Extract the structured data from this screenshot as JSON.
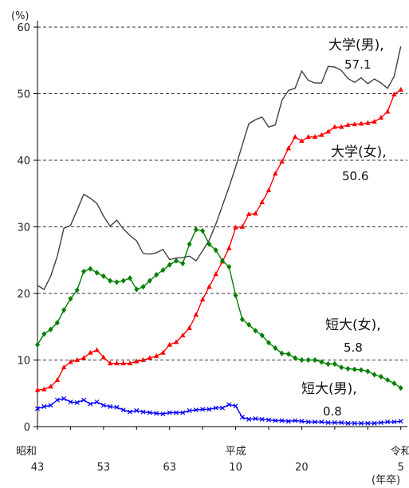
{
  "chart_data": {
    "type": "line",
    "y_unit": "(%)",
    "x_unit": "(年卒)",
    "ylim": [
      0,
      60
    ],
    "y_ticks": [
      0,
      10,
      20,
      30,
      40,
      50,
      60
    ],
    "xlim": [
      1968,
      2024
    ],
    "grid": "horizontal dashed",
    "x_ticks": [
      {
        "x": 1968,
        "era": "昭和",
        "label": "43"
      },
      {
        "x": 1978,
        "era": "",
        "label": "53"
      },
      {
        "x": 1988,
        "era": "",
        "label": "63"
      },
      {
        "x": 1998,
        "era": "平成",
        "label": "10"
      },
      {
        "x": 2008,
        "era": "",
        "label": "20"
      },
      {
        "x": 2023,
        "era": "令和",
        "label": "5"
      }
    ],
    "series": [
      {
        "name": "大学(男)",
        "color": "#404040",
        "marker": "none",
        "annotation": {
          "label": "大学(男),",
          "value": "57.1"
        },
        "x": [
          1968,
          1969,
          1970,
          1971,
          1972,
          1973,
          1974,
          1975,
          1976,
          1977,
          1978,
          1979,
          1980,
          1981,
          1982,
          1983,
          1984,
          1985,
          1986,
          1987,
          1988,
          1989,
          1990,
          1991,
          1992,
          1993,
          1994,
          1995,
          1996,
          1997,
          1998,
          1999,
          2000,
          2001,
          2002,
          2003,
          2004,
          2005,
          2006,
          2007,
          2008,
          2009,
          2010,
          2011,
          2012,
          2013,
          2014,
          2015,
          2016,
          2017,
          2018,
          2019,
          2020,
          2021,
          2022,
          2023
        ],
        "values": [
          21.2,
          20.6,
          22.6,
          25.6,
          29.8,
          30.2,
          32.5,
          34.9,
          34.3,
          33.5,
          31.6,
          30.1,
          31.0,
          29.7,
          28.7,
          27.9,
          26.0,
          25.9,
          26.1,
          26.6,
          25.1,
          25.3,
          25.4,
          25.6,
          24.9,
          26.4,
          28.0,
          30.4,
          33.2,
          36.0,
          39.0,
          42.3,
          45.5,
          46.1,
          46.5,
          45.0,
          45.3,
          49.0,
          50.5,
          50.8,
          53.4,
          52.0,
          51.6,
          51.6,
          54.1,
          54.0,
          53.5,
          52.3,
          51.7,
          52.4,
          51.5,
          52.2,
          51.6,
          50.8,
          52.6,
          57.1
        ]
      },
      {
        "name": "大学(女)",
        "color": "#ff0000",
        "marker": "triangle",
        "annotation": {
          "label": "大学(女),",
          "value": "50.6"
        },
        "x": [
          1968,
          1969,
          1970,
          1971,
          1972,
          1973,
          1974,
          1975,
          1976,
          1977,
          1978,
          1979,
          1980,
          1981,
          1982,
          1983,
          1984,
          1985,
          1986,
          1987,
          1988,
          1989,
          1990,
          1991,
          1992,
          1993,
          1994,
          1995,
          1996,
          1997,
          1998,
          1999,
          2000,
          2001,
          2002,
          2003,
          2004,
          2005,
          2006,
          2007,
          2008,
          2009,
          2010,
          2011,
          2012,
          2013,
          2014,
          2015,
          2016,
          2017,
          2018,
          2019,
          2020,
          2021,
          2022,
          2023
        ],
        "values": [
          5.5,
          5.6,
          6.0,
          7.0,
          8.9,
          9.7,
          10.0,
          10.3,
          11.1,
          11.5,
          10.4,
          9.5,
          9.5,
          9.5,
          9.5,
          9.8,
          10.0,
          10.3,
          10.6,
          11.1,
          12.3,
          12.7,
          13.7,
          14.8,
          16.8,
          19.1,
          21.0,
          22.9,
          24.8,
          26.8,
          29.9,
          30.0,
          31.9,
          32.0,
          33.7,
          35.5,
          38.0,
          39.8,
          41.8,
          43.5,
          42.9,
          43.5,
          43.5,
          43.8,
          44.3,
          45.0,
          45.0,
          45.3,
          45.4,
          45.5,
          45.6,
          45.8,
          46.4,
          47.3,
          49.9,
          50.6
        ]
      },
      {
        "name": "短大(女)",
        "color": "#008000",
        "marker": "diamond",
        "annotation": {
          "label": "短大(女),",
          "value": "5.8"
        },
        "x": [
          1968,
          1969,
          1970,
          1971,
          1972,
          1973,
          1974,
          1975,
          1976,
          1977,
          1978,
          1979,
          1980,
          1981,
          1982,
          1983,
          1984,
          1985,
          1986,
          1987,
          1988,
          1989,
          1990,
          1991,
          1992,
          1993,
          1994,
          1995,
          1996,
          1997,
          1998,
          1999,
          2000,
          2001,
          2002,
          2003,
          2004,
          2005,
          2006,
          2007,
          2008,
          2009,
          2010,
          2011,
          2012,
          2013,
          2014,
          2015,
          2016,
          2017,
          2018,
          2019,
          2020,
          2021,
          2022,
          2023
        ],
        "values": [
          12.3,
          13.9,
          14.6,
          15.6,
          17.5,
          19.2,
          20.5,
          23.3,
          23.7,
          23.1,
          22.6,
          21.9,
          21.7,
          21.9,
          22.3,
          20.6,
          21.0,
          21.9,
          22.8,
          23.5,
          24.3,
          24.9,
          24.5,
          27.4,
          29.6,
          29.4,
          27.4,
          26.5,
          24.9,
          24.0,
          19.7,
          16.1,
          15.3,
          14.4,
          13.7,
          12.6,
          11.8,
          11.0,
          10.9,
          10.3,
          10.0,
          10.0,
          10.0,
          9.7,
          9.4,
          9.4,
          8.9,
          8.7,
          8.6,
          8.5,
          8.3,
          7.8,
          7.5,
          7.0,
          6.5,
          5.8
        ]
      },
      {
        "name": "短大(男)",
        "color": "#0000ff",
        "marker": "x",
        "annotation": {
          "label": "短大(男),",
          "value": "0.8"
        },
        "x": [
          1968,
          1969,
          1970,
          1971,
          1972,
          1973,
          1974,
          1975,
          1976,
          1977,
          1978,
          1979,
          1980,
          1981,
          1982,
          1983,
          1984,
          1985,
          1986,
          1987,
          1988,
          1989,
          1990,
          1991,
          1992,
          1993,
          1994,
          1995,
          1996,
          1997,
          1998,
          1999,
          2000,
          2001,
          2002,
          2003,
          2004,
          2005,
          2006,
          2007,
          2008,
          2009,
          2010,
          2011,
          2012,
          2013,
          2014,
          2015,
          2016,
          2017,
          2018,
          2019,
          2020,
          2021,
          2022,
          2023
        ],
        "values": [
          2.7,
          3.0,
          3.2,
          4.0,
          4.2,
          3.7,
          3.6,
          4.0,
          3.4,
          3.7,
          3.2,
          3.0,
          2.9,
          2.5,
          2.2,
          2.4,
          2.2,
          2.1,
          2.0,
          1.9,
          2.1,
          2.1,
          2.1,
          2.4,
          2.5,
          2.6,
          2.6,
          2.8,
          2.8,
          3.3,
          3.1,
          1.4,
          1.1,
          1.2,
          1.1,
          1.0,
          0.9,
          0.9,
          0.8,
          0.9,
          0.8,
          0.7,
          0.7,
          0.7,
          0.6,
          0.6,
          0.6,
          0.5,
          0.5,
          0.5,
          0.5,
          0.5,
          0.6,
          0.7,
          0.7,
          0.8
        ]
      }
    ]
  }
}
